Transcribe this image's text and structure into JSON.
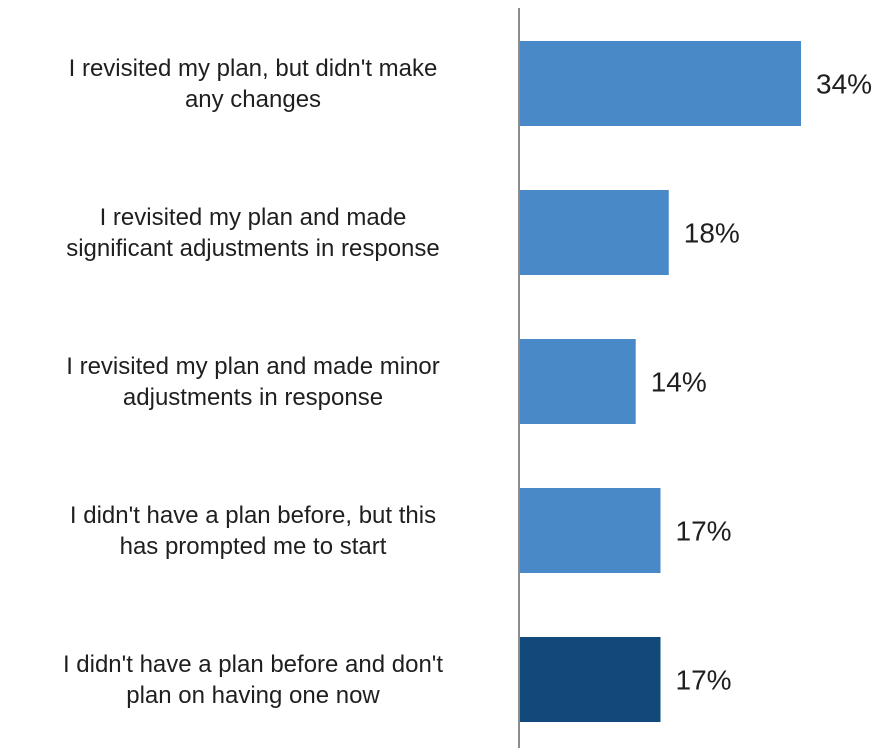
{
  "chart_data": {
    "type": "bar",
    "orientation": "horizontal",
    "title": "",
    "xlabel": "",
    "ylabel": "",
    "categories": [
      [
        "I revisited my plan, but didn't make",
        "any changes"
      ],
      [
        "I revisited my plan and made",
        "significant adjustments in response"
      ],
      [
        "I revisited my plan and made minor",
        "adjustments in response"
      ],
      [
        "I didn't have a plan before, but this",
        "has prompted me to start"
      ],
      [
        "I didn't have a plan before and don't",
        "plan on having one now"
      ]
    ],
    "values": [
      34,
      18,
      14,
      17,
      17
    ],
    "value_labels": [
      "34%",
      "18%",
      "14%",
      "17%",
      "17%"
    ],
    "bar_colors": [
      "#4a89c8",
      "#4a89c8",
      "#4a89c8",
      "#4a89c8",
      "#114a7a"
    ],
    "axis_color": "#8c8c8c",
    "xlim": [
      0,
      34
    ],
    "grid": false,
    "legend": "none"
  }
}
